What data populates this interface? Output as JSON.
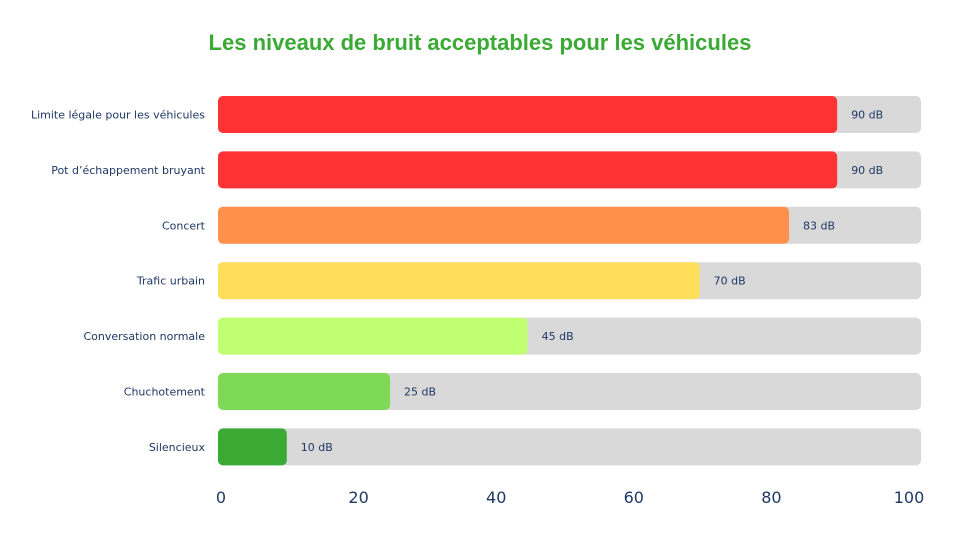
{
  "chart_data": {
    "type": "bar",
    "orientation": "horizontal",
    "title": "Les niveaux de bruit acceptables pour les véhicules",
    "categories": [
      "Limite légale pour les véhicules",
      "Pot d’échappement bruyant",
      "Concert",
      "Trafic urbain",
      "Conversation normale",
      "Chuchotement",
      "Silencieux"
    ],
    "values": [
      90,
      90,
      83,
      70,
      45,
      25,
      10
    ],
    "value_labels": [
      "90 dB",
      "90 dB",
      "83 dB",
      "70 dB",
      "45 dB",
      "25 dB",
      "10 dB"
    ],
    "bar_colors": [
      "#ff3333",
      "#ff3333",
      "#ff914d",
      "#ffde59",
      "#c1ff72",
      "#7ed957",
      "#3aaa35"
    ],
    "track_color": "#d9d9d9",
    "xlim": [
      0,
      100
    ],
    "x_ticks": [
      "0",
      "20",
      "40",
      "60",
      "80",
      "100"
    ],
    "grid": false,
    "legend": "none",
    "title_color": "#3aaa35",
    "text_color": "#1f3864"
  }
}
